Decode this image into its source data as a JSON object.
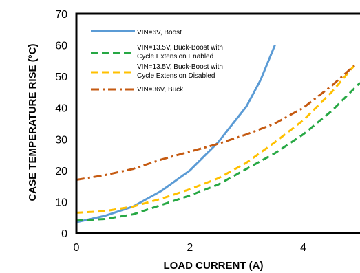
{
  "chart_data": {
    "type": "line",
    "title": "",
    "xlabel": "LOAD CURRENT (A)",
    "ylabel": "CASE TEMPERATURE RISE (°C)",
    "xlim": [
      0,
      5
    ],
    "ylim": [
      0,
      70
    ],
    "x_ticks": [
      0,
      2,
      4
    ],
    "y_ticks": [
      0,
      10,
      20,
      30,
      40,
      50,
      60,
      70
    ],
    "grid": false,
    "legend_position": "top-left",
    "series": [
      {
        "name": "VIN=6V, Boost",
        "color": "#5b9bd5",
        "dash": "solid",
        "x": [
          0,
          0.5,
          1.0,
          1.5,
          2.0,
          2.5,
          3.0,
          3.25,
          3.5
        ],
        "y": [
          3.5,
          5.5,
          8.5,
          13.5,
          20.0,
          29.0,
          40.5,
          49.0,
          60.0
        ]
      },
      {
        "name": "VIN=13.5V, Buck-Boost with Cycle Extension Enabled",
        "color": "#27a844",
        "dash": "dashed",
        "x": [
          0,
          0.5,
          1.0,
          1.5,
          2.0,
          2.5,
          3.0,
          3.5,
          4.0,
          4.5,
          5.0
        ],
        "y": [
          4.0,
          4.5,
          6.0,
          9.0,
          12.0,
          15.5,
          20.5,
          25.5,
          31.5,
          39.0,
          48.0
        ]
      },
      {
        "name": "VIN=13.5V, Buck-Boost with Cycle Extension Disabled",
        "color": "#ffc000",
        "dash": "dashed",
        "x": [
          0,
          0.5,
          1.0,
          1.5,
          2.0,
          2.5,
          3.0,
          3.5,
          4.0,
          4.5,
          4.9
        ],
        "y": [
          6.5,
          7.0,
          8.5,
          11.0,
          14.0,
          17.5,
          22.5,
          29.0,
          36.0,
          45.0,
          53.5
        ]
      },
      {
        "name": "VIN=36V, Buck",
        "color": "#c55a11",
        "dash": "dashdot",
        "x": [
          0,
          0.5,
          1.0,
          1.5,
          2.0,
          2.5,
          3.0,
          3.5,
          4.0,
          4.5,
          4.9
        ],
        "y": [
          17.0,
          18.5,
          20.5,
          23.5,
          26.0,
          28.5,
          31.5,
          35.0,
          40.0,
          47.0,
          53.5
        ]
      }
    ]
  }
}
